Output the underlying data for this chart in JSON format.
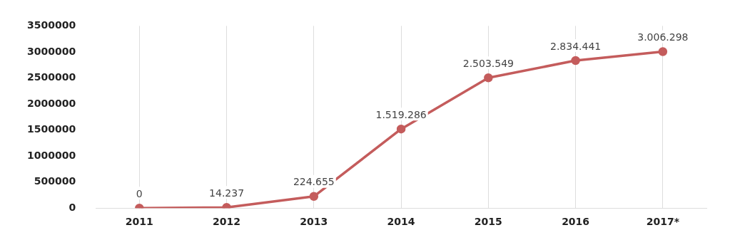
{
  "chart_data": {
    "type": "line",
    "categories": [
      "2011",
      "2012",
      "2013",
      "2014",
      "2015",
      "2016",
      "2017*"
    ],
    "series": [
      {
        "color": "#c45c5c",
        "values": [
          0,
          14237,
          224655,
          1519286,
          2503549,
          2834441,
          3006298
        ],
        "value_labels": [
          "0",
          "14.237",
          "224.655",
          "1.519.286",
          "2.503.549",
          "2.834.441",
          "3.006.298"
        ]
      }
    ],
    "ylim": [
      0,
      3500000
    ],
    "yticks": [
      0,
      500000,
      1000000,
      1500000,
      2000000,
      2500000,
      3000000,
      3500000
    ],
    "grid": "x",
    "marker": "circle",
    "line_style": "solid",
    "legend": false
  }
}
